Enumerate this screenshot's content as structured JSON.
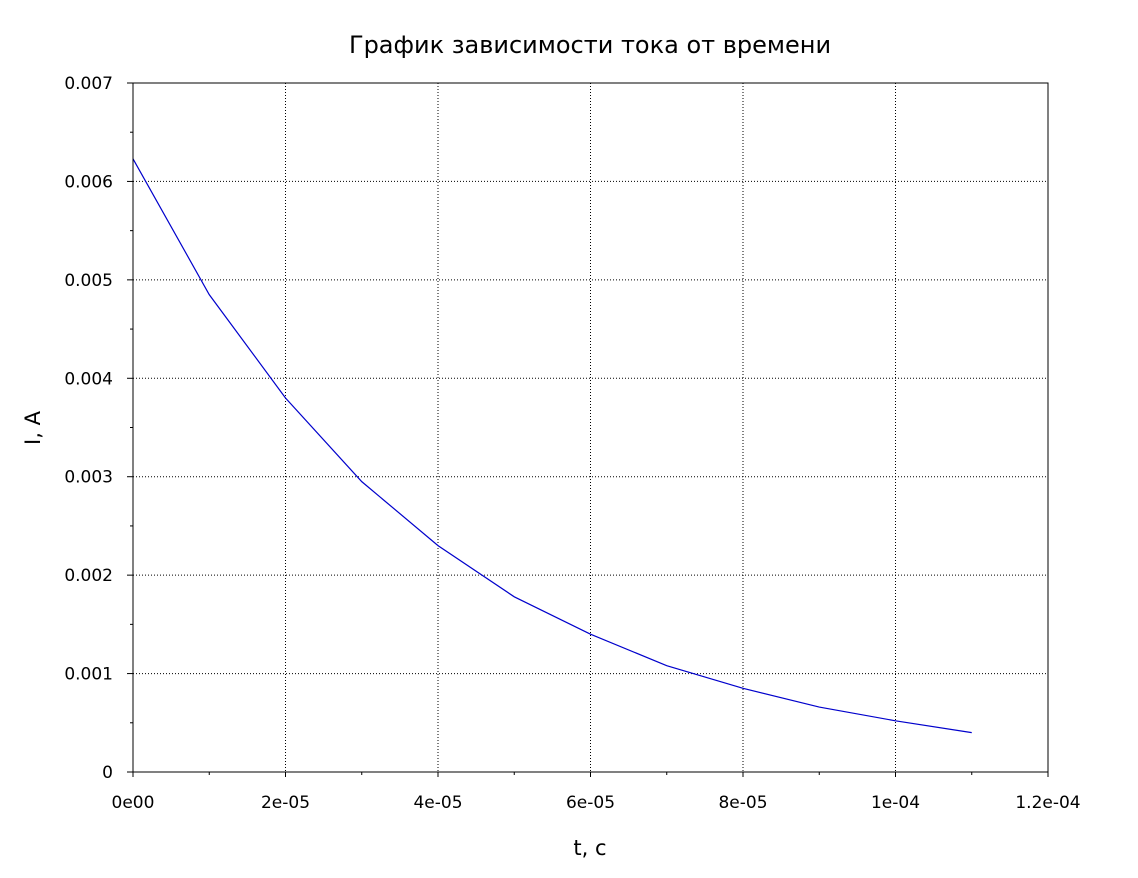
{
  "chart_data": {
    "type": "line",
    "title": "График зависимости тока от времени",
    "xlabel": "t, c",
    "ylabel": "I, A",
    "xlim": [
      0,
      0.00012
    ],
    "ylim": [
      0,
      0.007
    ],
    "grid": true,
    "x_ticks": [
      {
        "value": 0,
        "label": "0e00"
      },
      {
        "value": 2e-05,
        "label": "2e-05"
      },
      {
        "value": 4e-05,
        "label": "4e-05"
      },
      {
        "value": 6e-05,
        "label": "6e-05"
      },
      {
        "value": 8e-05,
        "label": "8e-05"
      },
      {
        "value": 0.0001,
        "label": "1e-04"
      },
      {
        "value": 0.00012,
        "label": "1.2e-04"
      }
    ],
    "y_ticks": [
      {
        "value": 0,
        "label": "0"
      },
      {
        "value": 0.001,
        "label": "0.001"
      },
      {
        "value": 0.002,
        "label": "0.002"
      },
      {
        "value": 0.003,
        "label": "0.003"
      },
      {
        "value": 0.004,
        "label": "0.004"
      },
      {
        "value": 0.005,
        "label": "0.005"
      },
      {
        "value": 0.006,
        "label": "0.006"
      },
      {
        "value": 0.007,
        "label": "0.007"
      }
    ],
    "series": [
      {
        "color": "#0000cc",
        "x": [
          0,
          1e-05,
          2e-05,
          3e-05,
          4e-05,
          5e-05,
          6e-05,
          7e-05,
          8e-05,
          9e-05,
          0.0001,
          0.00011
        ],
        "y": [
          0.00623,
          0.00485,
          0.0038,
          0.00295,
          0.0023,
          0.00178,
          0.0014,
          0.00108,
          0.00085,
          0.00066,
          0.00052,
          0.0004
        ]
      }
    ]
  }
}
